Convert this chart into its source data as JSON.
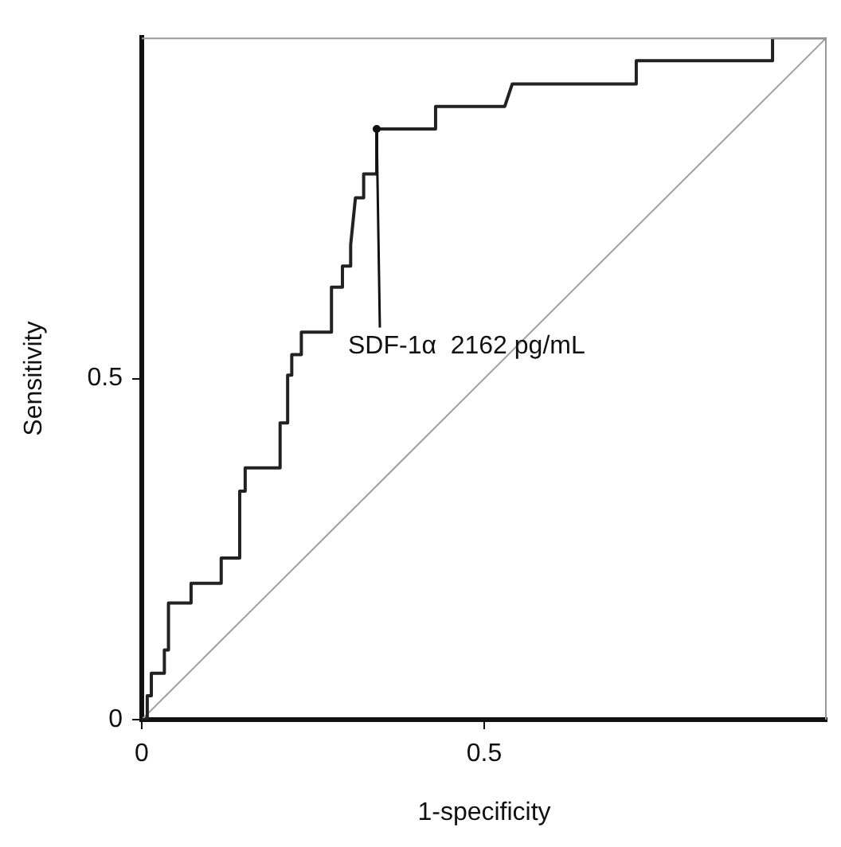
{
  "chart_data": {
    "type": "line",
    "xlabel": "1-specificity",
    "ylabel": "Sensitivity",
    "xlim": [
      0,
      1
    ],
    "ylim": [
      0,
      1
    ],
    "xticks": [
      0,
      0.5
    ],
    "yticks": [
      0,
      0.5
    ],
    "grid": false,
    "legend": false,
    "marker": "none",
    "line_style": "solid",
    "series": [
      {
        "color": "#222222",
        "x": [
          0,
          0.008,
          0.008,
          0.014,
          0.014,
          0.033,
          0.033,
          0.039,
          0.039,
          0.072,
          0.072,
          0.116,
          0.116,
          0.143,
          0.143,
          0.151,
          0.151,
          0.202,
          0.202,
          0.213,
          0.213,
          0.219,
          0.219,
          0.233,
          0.233,
          0.277,
          0.277,
          0.293,
          0.293,
          0.305,
          0.305,
          0.312,
          0.324,
          0.324,
          0.343,
          0.343,
          0.429,
          0.429,
          0.53,
          0.541,
          0.722,
          0.722,
          0.921,
          0.921,
          1
        ],
        "values": [
          0,
          0,
          0.035,
          0.035,
          0.068,
          0.068,
          0.102,
          0.102,
          0.171,
          0.171,
          0.2,
          0.2,
          0.237,
          0.237,
          0.335,
          0.335,
          0.369,
          0.369,
          0.435,
          0.435,
          0.505,
          0.505,
          0.535,
          0.535,
          0.568,
          0.568,
          0.634,
          0.634,
          0.665,
          0.665,
          0.696,
          0.765,
          0.765,
          0.8,
          0.8,
          0.866,
          0.866,
          0.899,
          0.899,
          0.932,
          0.932,
          0.966,
          0.966,
          1,
          1
        ]
      },
      {
        "color": "#a0a0a0",
        "x": [
          0,
          1
        ],
        "values": [
          0,
          1
        ]
      }
    ],
    "annotations": [
      {
        "text": "SDF-1α  2162 pg/mL",
        "x": 0.343,
        "y": 0.866
      }
    ]
  }
}
